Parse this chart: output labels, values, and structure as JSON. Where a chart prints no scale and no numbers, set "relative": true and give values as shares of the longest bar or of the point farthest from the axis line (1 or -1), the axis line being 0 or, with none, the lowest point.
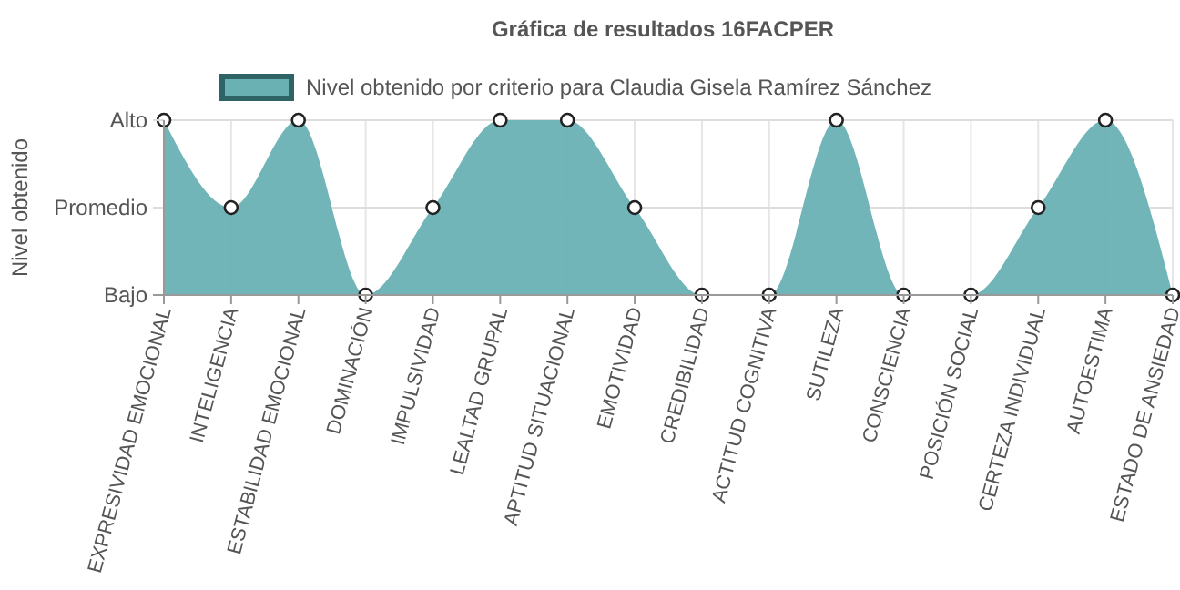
{
  "chart_data": {
    "type": "area",
    "title": "Gráfica de resultados 16FACPER",
    "ylabel": "Nivel obtenido",
    "categories": [
      "EXPRESIVIDAD EMOCIONAL",
      "INTELIGENCIA",
      "ESTABILIDAD EMOCIONAL",
      "DOMINACIÓN",
      "IMPULSIVIDAD",
      "LEALTAD GRUPAL",
      "APTITUD SITUACIONAL",
      "EMOTIVIDAD",
      "CREDIBILIDAD",
      "ACTITUD COGNITIVA",
      "SUTILEZA",
      "CONSCIENCIA",
      "POSICIÓN SOCIAL",
      "CERTEZA INDIVIDUAL",
      "AUTOESTIMA",
      "ESTADO DE ANSIEDAD"
    ],
    "series": [
      {
        "name": "Nivel obtenido por criterio para Claudia Gisela Ramírez Sánchez",
        "color": "#6ab1b4",
        "values": [
          1,
          0.5,
          1,
          0,
          0.5,
          1,
          1,
          0.5,
          0,
          0,
          1,
          0,
          0,
          0.5,
          1,
          0
        ]
      }
    ],
    "relative": true,
    "annotations": [
      "Bajo"
    ],
    "ref_lines": [
      {
        "axis": "y",
        "value": 0.5,
        "label": "Promedio",
        "color": "#dddddd"
      },
      {
        "axis": "y",
        "value": 1,
        "label": "Alto",
        "color": "#dddddd"
      }
    ],
    "grid": "x",
    "legend": "top",
    "marker": "circle"
  }
}
